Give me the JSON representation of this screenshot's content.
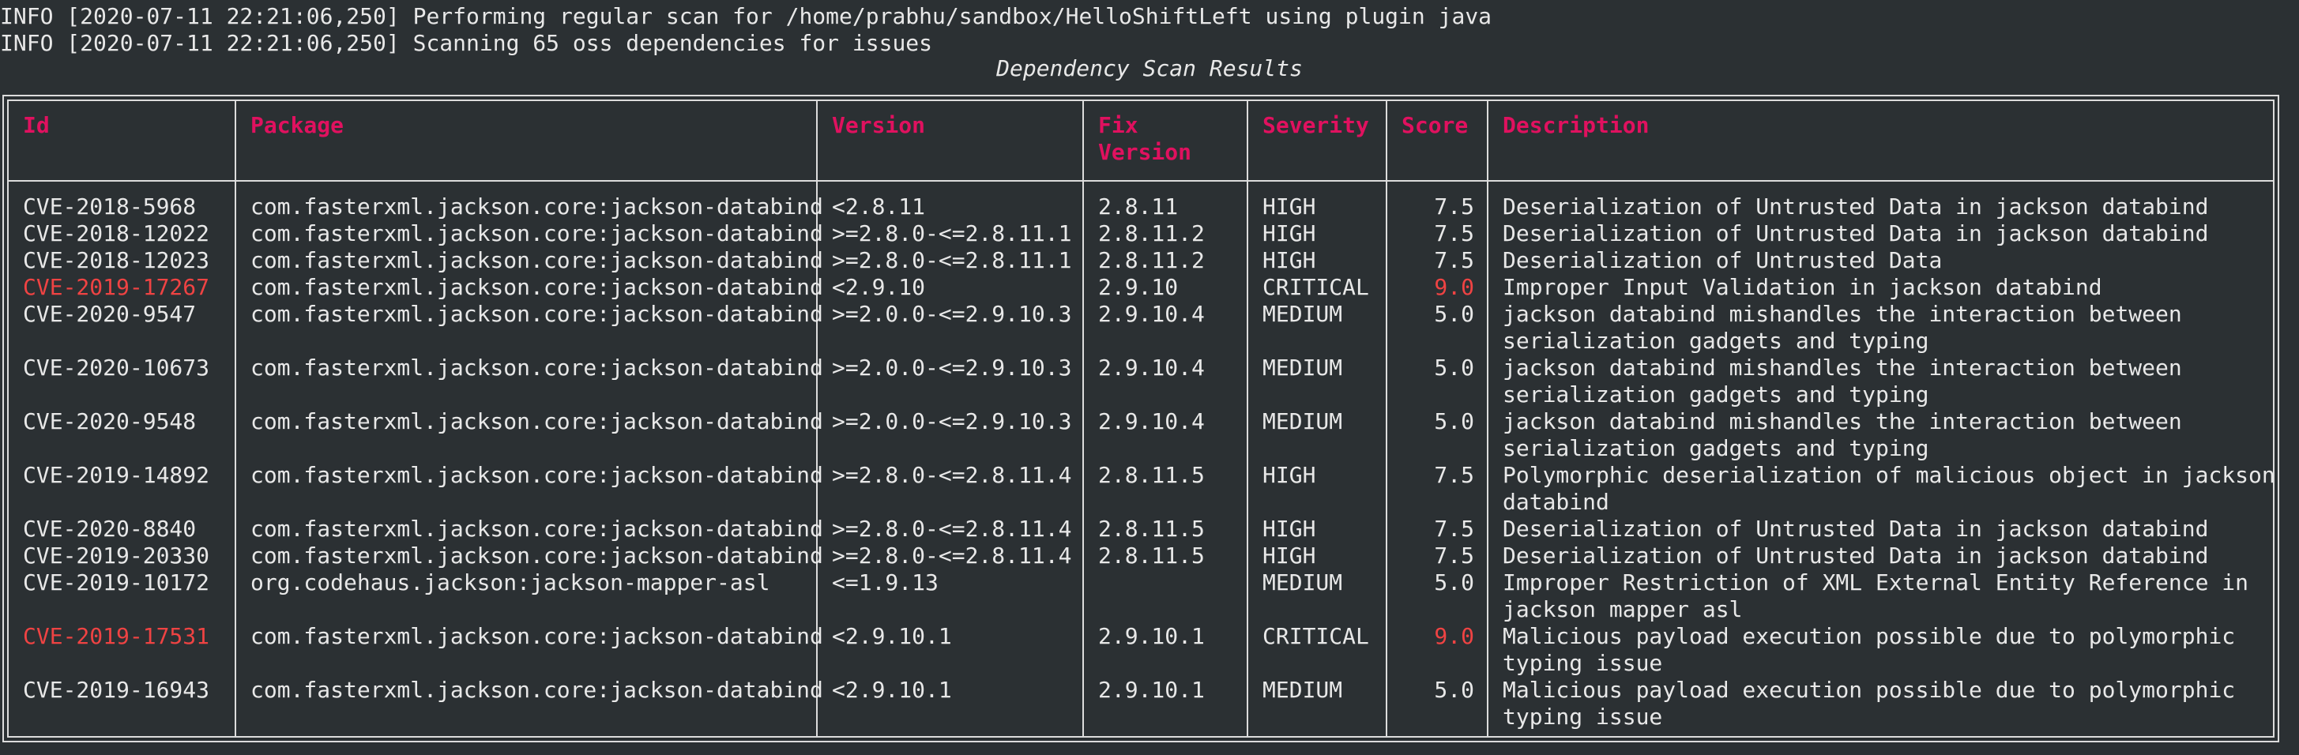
{
  "log": [
    "INFO [2020-07-11 22:21:06,250] Performing regular scan for /home/prabhu/sandbox/HelloShiftLeft using plugin java",
    "INFO [2020-07-11 22:21:06,250] Scanning 65 oss dependencies for issues"
  ],
  "table": {
    "title": "Dependency Scan Results",
    "headers": {
      "id": "Id",
      "package": "Package",
      "version": "Version",
      "fix_version": "Fix Version",
      "severity": "Severity",
      "score": "Score",
      "description": "Description"
    },
    "colors": {
      "header": "#e0115f",
      "critical": "#ef4343",
      "text": "#e8e8e8",
      "background": "#2b3033"
    },
    "rows": [
      {
        "id": "CVE-2018-5968",
        "package": "com.fasterxml.jackson.core:jackson-databind",
        "version": "<2.8.11",
        "fix_version": "2.8.11",
        "severity": "HIGH",
        "score": "7.5",
        "description": "Deserialization of Untrusted Data in jackson databind",
        "description2": ""
      },
      {
        "id": "CVE-2018-12022",
        "package": "com.fasterxml.jackson.core:jackson-databind",
        "version": ">=2.8.0-<=2.8.11.1",
        "fix_version": "2.8.11.2",
        "severity": "HIGH",
        "score": "7.5",
        "description": "Deserialization of Untrusted Data in jackson databind",
        "description2": ""
      },
      {
        "id": "CVE-2018-12023",
        "package": "com.fasterxml.jackson.core:jackson-databind",
        "version": ">=2.8.0-<=2.8.11.1",
        "fix_version": "2.8.11.2",
        "severity": "HIGH",
        "score": "7.5",
        "description": "Deserialization of Untrusted Data",
        "description2": ""
      },
      {
        "id": "CVE-2019-17267",
        "package": "com.fasterxml.jackson.core:jackson-databind",
        "version": "<2.9.10",
        "fix_version": "2.9.10",
        "severity": "CRITICAL",
        "score": "9.0",
        "description": "Improper Input Validation in jackson databind",
        "description2": ""
      },
      {
        "id": "CVE-2020-9547",
        "package": "com.fasterxml.jackson.core:jackson-databind",
        "version": ">=2.0.0-<=2.9.10.3",
        "fix_version": "2.9.10.4",
        "severity": "MEDIUM",
        "score": "5.0",
        "description": "jackson databind mishandles the interaction between",
        "description2": "serialization gadgets and typing"
      },
      {
        "id": "CVE-2020-10673",
        "package": "com.fasterxml.jackson.core:jackson-databind",
        "version": ">=2.0.0-<=2.9.10.3",
        "fix_version": "2.9.10.4",
        "severity": "MEDIUM",
        "score": "5.0",
        "description": "jackson databind mishandles the interaction between",
        "description2": "serialization gadgets and typing"
      },
      {
        "id": "CVE-2020-9548",
        "package": "com.fasterxml.jackson.core:jackson-databind",
        "version": ">=2.0.0-<=2.9.10.3",
        "fix_version": "2.9.10.4",
        "severity": "MEDIUM",
        "score": "5.0",
        "description": "jackson databind mishandles the interaction between",
        "description2": "serialization gadgets and typing"
      },
      {
        "id": "CVE-2019-14892",
        "package": "com.fasterxml.jackson.core:jackson-databind",
        "version": ">=2.8.0-<=2.8.11.4",
        "fix_version": "2.8.11.5",
        "severity": "HIGH",
        "score": "7.5",
        "description": "Polymorphic deserialization of malicious object in jackson",
        "description2": "databind"
      },
      {
        "id": "CVE-2020-8840",
        "package": "com.fasterxml.jackson.core:jackson-databind",
        "version": ">=2.8.0-<=2.8.11.4",
        "fix_version": "2.8.11.5",
        "severity": "HIGH",
        "score": "7.5",
        "description": "Deserialization of Untrusted Data in jackson databind",
        "description2": ""
      },
      {
        "id": "CVE-2019-20330",
        "package": "com.fasterxml.jackson.core:jackson-databind",
        "version": ">=2.8.0-<=2.8.11.4",
        "fix_version": "2.8.11.5",
        "severity": "HIGH",
        "score": "7.5",
        "description": "Deserialization of Untrusted Data in jackson databind",
        "description2": ""
      },
      {
        "id": "CVE-2019-10172",
        "package": "org.codehaus.jackson:jackson-mapper-asl",
        "version": "<=1.9.13",
        "fix_version": "",
        "severity": "MEDIUM",
        "score": "5.0",
        "description": "Improper Restriction of XML External Entity Reference in",
        "description2": "jackson mapper asl"
      },
      {
        "id": "CVE-2019-17531",
        "package": "com.fasterxml.jackson.core:jackson-databind",
        "version": "<2.9.10.1",
        "fix_version": "2.9.10.1",
        "severity": "CRITICAL",
        "score": "9.0",
        "description": "Malicious payload execution possible due to polymorphic",
        "description2": "typing issue"
      },
      {
        "id": "CVE-2019-16943",
        "package": "com.fasterxml.jackson.core:jackson-databind",
        "version": "<2.9.10.1",
        "fix_version": "2.9.10.1",
        "severity": "MEDIUM",
        "score": "5.0",
        "description": "Malicious payload execution possible due to polymorphic",
        "description2": "typing issue"
      }
    ]
  }
}
